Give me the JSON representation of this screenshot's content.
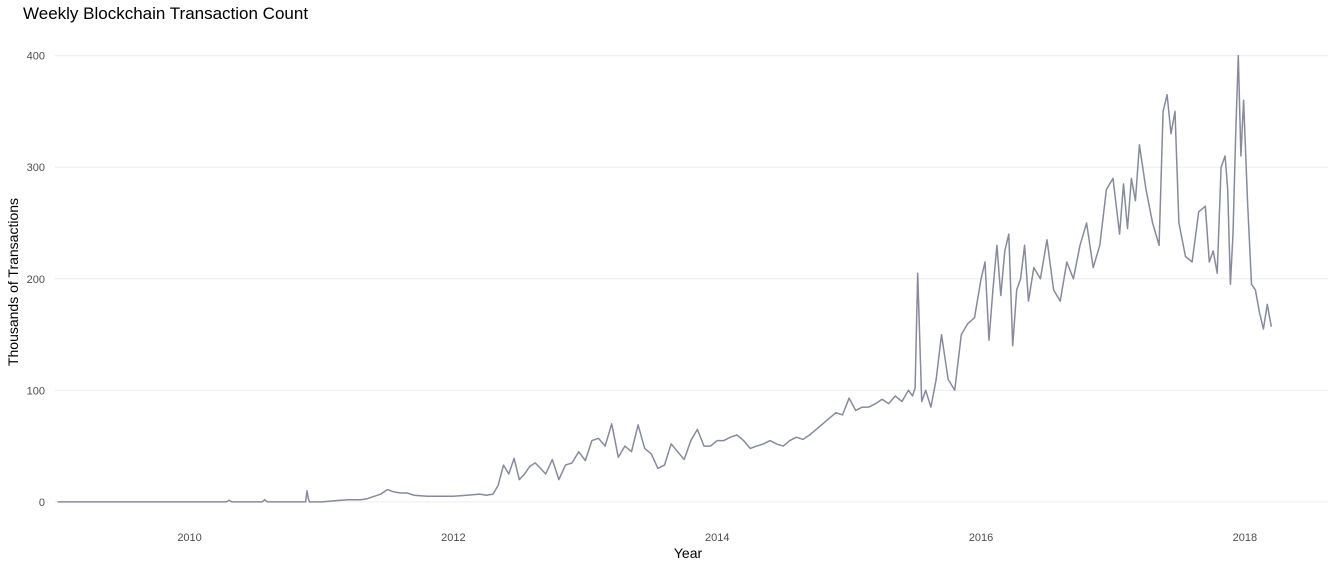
{
  "chart_data": {
    "type": "line",
    "title": "Weekly Blockchain Transaction Count",
    "xlabel": "Year",
    "ylabel": "Thousands of Transactions",
    "xlim": [
      2008.98,
      2018.63
    ],
    "ylim": [
      -18,
      414
    ],
    "x_ticks": [
      2010,
      2012,
      2014,
      2016,
      2018
    ],
    "y_ticks": [
      0,
      100,
      200,
      300,
      400
    ],
    "grid": "horizontal",
    "colors": {
      "line": "#878a9c",
      "grid": "#ebebeb",
      "tick_text": "#4d4d4d"
    },
    "series": [
      {
        "x": [
          2009.0,
          2009.5,
          2010.0,
          2010.28,
          2010.3,
          2010.32,
          2010.55,
          2010.57,
          2010.59,
          2010.88,
          2010.89,
          2010.9,
          2010.91,
          2011.0,
          2011.1,
          2011.2,
          2011.3,
          2011.35,
          2011.4,
          2011.45,
          2011.5,
          2011.55,
          2011.6,
          2011.65,
          2011.7,
          2011.8,
          2011.9,
          2012.0,
          2012.1,
          2012.2,
          2012.25,
          2012.3,
          2012.34,
          2012.38,
          2012.42,
          2012.46,
          2012.5,
          2012.54,
          2012.58,
          2012.62,
          2012.66,
          2012.7,
          2012.75,
          2012.8,
          2012.85,
          2012.9,
          2012.95,
          2013.0,
          2013.05,
          2013.1,
          2013.15,
          2013.2,
          2013.25,
          2013.3,
          2013.35,
          2013.4,
          2013.45,
          2013.5,
          2013.55,
          2013.6,
          2013.65,
          2013.7,
          2013.75,
          2013.8,
          2013.85,
          2013.9,
          2013.95,
          2014.0,
          2014.05,
          2014.1,
          2014.15,
          2014.2,
          2014.25,
          2014.3,
          2014.35,
          2014.4,
          2014.45,
          2014.5,
          2014.55,
          2014.6,
          2014.65,
          2014.7,
          2014.75,
          2014.8,
          2014.85,
          2014.9,
          2014.95,
          2015.0,
          2015.05,
          2015.1,
          2015.15,
          2015.2,
          2015.25,
          2015.3,
          2015.35,
          2015.4,
          2015.45,
          2015.48,
          2015.5,
          2015.52,
          2015.55,
          2015.58,
          2015.62,
          2015.66,
          2015.7,
          2015.75,
          2015.8,
          2015.85,
          2015.9,
          2015.95,
          2016.0,
          2016.03,
          2016.06,
          2016.09,
          2016.12,
          2016.15,
          2016.18,
          2016.21,
          2016.24,
          2016.27,
          2016.3,
          2016.33,
          2016.36,
          2016.4,
          2016.45,
          2016.5,
          2016.55,
          2016.6,
          2016.65,
          2016.7,
          2016.75,
          2016.8,
          2016.85,
          2016.9,
          2016.95,
          2017.0,
          2017.05,
          2017.08,
          2017.11,
          2017.14,
          2017.17,
          2017.2,
          2017.25,
          2017.3,
          2017.35,
          2017.38,
          2017.41,
          2017.44,
          2017.47,
          2017.5,
          2017.55,
          2017.6,
          2017.65,
          2017.7,
          2017.73,
          2017.76,
          2017.79,
          2017.82,
          2017.85,
          2017.87,
          2017.89,
          2017.91,
          2017.93,
          2017.95,
          2017.97,
          2017.99,
          2018.02,
          2018.05,
          2018.08,
          2018.11,
          2018.14,
          2018.17,
          2018.2
        ],
        "values": [
          0,
          0,
          0,
          0,
          1.5,
          0,
          0,
          2,
          0,
          0,
          10,
          3,
          0,
          0,
          1,
          2,
          2,
          3,
          5,
          7,
          11,
          9,
          8,
          8,
          6,
          5,
          5,
          5,
          6,
          7,
          6,
          7,
          15,
          33,
          25,
          39,
          20,
          25,
          32,
          35,
          30,
          25,
          38,
          20,
          33,
          35,
          45,
          37,
          55,
          57,
          50,
          70,
          40,
          50,
          45,
          69,
          48,
          43,
          30,
          33,
          52,
          45,
          38,
          55,
          65,
          50,
          50,
          55,
          55,
          58,
          60,
          55,
          48,
          50,
          52,
          55,
          52,
          50,
          55,
          58,
          56,
          60,
          65,
          70,
          75,
          80,
          78,
          93,
          82,
          85,
          85,
          88,
          92,
          88,
          95,
          90,
          100,
          95,
          102,
          205,
          90,
          100,
          85,
          110,
          150,
          110,
          100,
          150,
          160,
          165,
          200,
          215,
          145,
          190,
          230,
          185,
          225,
          240,
          140,
          190,
          200,
          230,
          180,
          210,
          200,
          235,
          190,
          180,
          215,
          200,
          230,
          250,
          210,
          230,
          280,
          290,
          240,
          285,
          245,
          290,
          270,
          320,
          280,
          250,
          230,
          350,
          365,
          330,
          350,
          250,
          220,
          215,
          260,
          265,
          215,
          225,
          205,
          300,
          310,
          280,
          195,
          240,
          330,
          400,
          310,
          360,
          270,
          195,
          190,
          170,
          155,
          177,
          157
        ]
      }
    ]
  }
}
